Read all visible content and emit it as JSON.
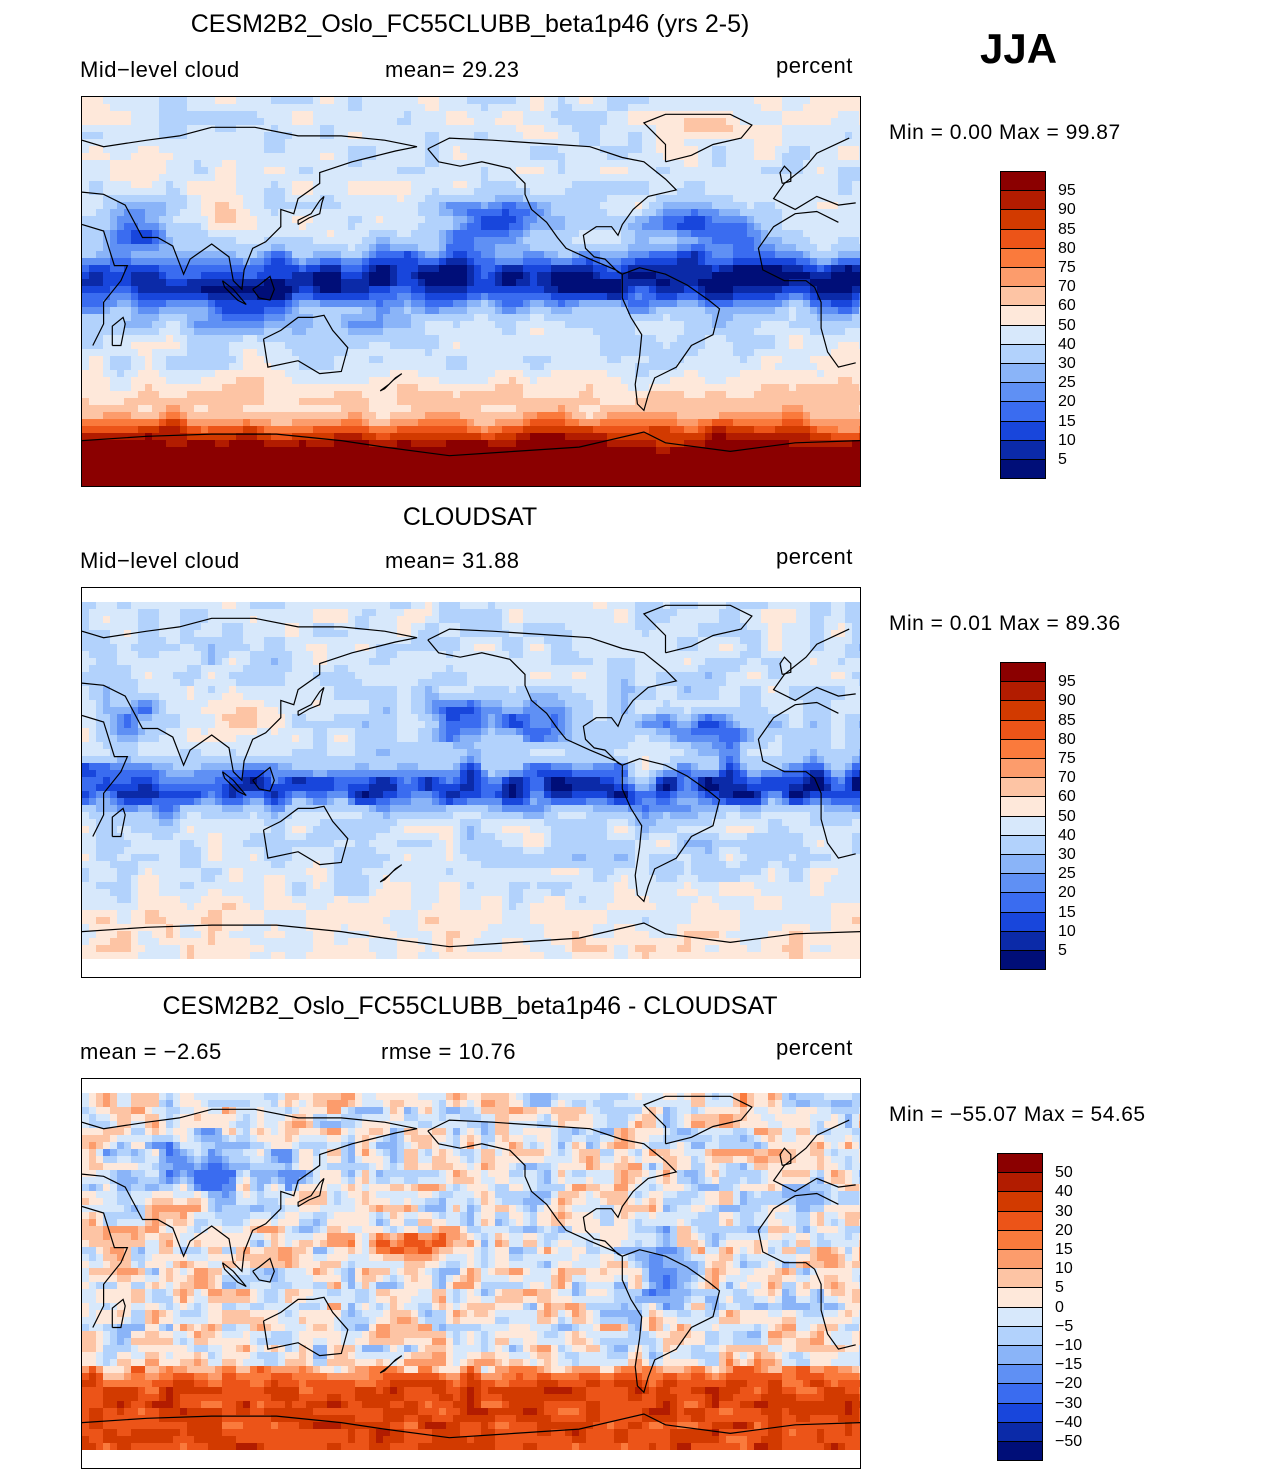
{
  "season": "JJA",
  "panels": [
    {
      "title": "CESM2B2_Oslo_FC55CLUBB_beta1p46 (yrs 2-5)",
      "left_label": "Mid−level  cloud",
      "mid_label": "mean=   29.23",
      "units": "percent",
      "minmax": "Min  =      0.00  Max  =     99.87",
      "field": "model",
      "map_description": "global map of mid-level cloud fraction, model",
      "colorbar": {
        "labels": [
          "95",
          "90",
          "85",
          "80",
          "75",
          "70",
          "60",
          "50",
          "40",
          "30",
          "25",
          "20",
          "15",
          "10",
          "5"
        ],
        "colors": [
          "#8b0000",
          "#b21c00",
          "#d23a00",
          "#ec5418",
          "#fa7a3c",
          "#fc9c6c",
          "#fdc4a4",
          "#fee8da",
          "#d7e8fb",
          "#b2d2fc",
          "#8ab4f8",
          "#5f90f4",
          "#3a6cf0",
          "#1846dc",
          "#0b2aa8",
          "#000e78"
        ]
      }
    },
    {
      "title": "CLOUDSAT",
      "left_label": "Mid−level  cloud",
      "mid_label": "mean=   31.88",
      "units": "percent",
      "minmax": "Min  =      0.01  Max  =     89.36",
      "field": "obs",
      "map_description": "global map of mid-level cloud fraction, CloudSat",
      "colorbar": {
        "labels": [
          "95",
          "90",
          "85",
          "80",
          "75",
          "70",
          "60",
          "50",
          "40",
          "30",
          "25",
          "20",
          "15",
          "10",
          "5"
        ],
        "colors": [
          "#8b0000",
          "#b21c00",
          "#d23a00",
          "#ec5418",
          "#fa7a3c",
          "#fc9c6c",
          "#fdc4a4",
          "#fee8da",
          "#d7e8fb",
          "#b2d2fc",
          "#8ab4f8",
          "#5f90f4",
          "#3a6cf0",
          "#1846dc",
          "#0b2aa8",
          "#000e78"
        ]
      }
    },
    {
      "title": "CESM2B2_Oslo_FC55CLUBB_beta1p46 - CLOUDSAT",
      "left_label": "mean  =    −2.65",
      "mid_label": "rmse  =    10.76",
      "units": "percent",
      "minmax": "Min  =  −55.07  Max  =    54.65",
      "field": "diff",
      "map_description": "global map of model minus CloudSat difference",
      "colorbar": {
        "labels": [
          "50",
          "40",
          "30",
          "20",
          "15",
          "10",
          "5",
          "0",
          "−5",
          "−10",
          "−15",
          "−20",
          "−30",
          "−40",
          "−50"
        ],
        "colors": [
          "#8b0000",
          "#b21c00",
          "#d23a00",
          "#ec5418",
          "#fa7a3c",
          "#fc9c6c",
          "#fdc4a4",
          "#fee8da",
          "#d7e8fb",
          "#b2d2fc",
          "#8ab4f8",
          "#5f90f4",
          "#3a6cf0",
          "#1846dc",
          "#0b2aa8",
          "#000e78"
        ]
      }
    }
  ]
}
